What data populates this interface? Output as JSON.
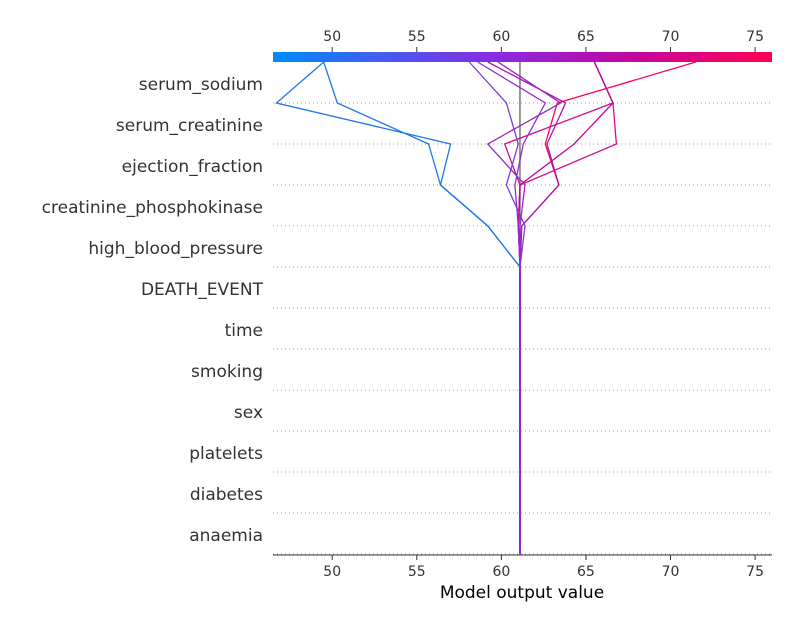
{
  "chart_data": {
    "type": "line",
    "subtype": "shap-decision-plot",
    "xlabel": "Model output value",
    "xlim": [
      46.5,
      76
    ],
    "xticks": [
      50,
      55,
      60,
      65,
      70,
      75
    ],
    "tick_labels": [
      "50",
      "55",
      "60",
      "65",
      "70",
      "75"
    ],
    "base_value": 61.1,
    "features": [
      "serum_sodium",
      "serum_creatinine",
      "ejection_fraction",
      "creatinine_phosphokinase",
      "high_blood_pressure",
      "DEATH_EVENT",
      "time",
      "smoking",
      "sex",
      "platelets",
      "diabetes",
      "anaemia"
    ],
    "grid": "dotted horizontal",
    "colormap": [
      "#008bfb",
      "#8a2be2",
      "#c3059f",
      "#ff0052"
    ],
    "series": [
      {
        "color": "#1e78e6",
        "values": [
          49.5,
          46.7,
          57.0,
          56.4,
          59.2,
          61.1,
          61.1,
          61.1,
          61.1,
          61.1,
          61.1,
          61.1,
          61.1
        ]
      },
      {
        "color": "#1e78e6",
        "values": [
          49.5,
          50.3,
          55.7,
          56.4,
          59.2,
          61.1,
          61.1,
          61.1,
          61.1,
          61.1,
          61.1,
          61.1,
          61.1
        ]
      },
      {
        "color": "#ff0052",
        "values": [
          71.5,
          63.3,
          62.6,
          63.4,
          61.2,
          61.1,
          61.1,
          61.1,
          61.1,
          61.1,
          61.1,
          61.1,
          61.1
        ]
      },
      {
        "color": "#d80a8e",
        "values": [
          65.5,
          66.6,
          60.2,
          61.1,
          61.0,
          61.1,
          61.1,
          61.1,
          61.1,
          61.1,
          61.1,
          61.1,
          61.1
        ]
      },
      {
        "color": "#d80a8e",
        "values": [
          65.5,
          66.6,
          66.8,
          61.1,
          61.0,
          61.1,
          61.1,
          61.1,
          61.1,
          61.1,
          61.1,
          61.1,
          61.1
        ]
      },
      {
        "color": "#c3059f",
        "values": [
          65.5,
          66.6,
          64.3,
          61.1,
          61.0,
          61.1,
          61.1,
          61.1,
          61.1,
          61.1,
          61.1,
          61.1,
          61.1
        ]
      },
      {
        "color": "#a516b6",
        "values": [
          59.2,
          63.8,
          62.7,
          63.4,
          61.2,
          61.1,
          61.1,
          61.1,
          61.1,
          61.1,
          61.1,
          61.1,
          61.1
        ]
      },
      {
        "color": "#7d3cd6",
        "values": [
          58.1,
          60.3,
          61.0,
          60.3,
          61.4,
          61.1,
          61.1,
          61.1,
          61.1,
          61.1,
          61.1,
          61.1,
          61.1
        ]
      },
      {
        "color": "#9a28c2",
        "values": [
          59.8,
          63.5,
          59.2,
          61.4,
          61.1,
          61.1,
          61.1,
          61.1,
          61.1,
          61.1,
          61.1,
          61.1,
          61.1
        ]
      },
      {
        "color": "#8c30cc",
        "values": [
          58.6,
          62.6,
          61.3,
          60.8,
          61.0,
          61.1,
          61.1,
          61.1,
          61.1,
          61.1,
          61.1,
          61.1,
          61.1
        ]
      }
    ]
  }
}
